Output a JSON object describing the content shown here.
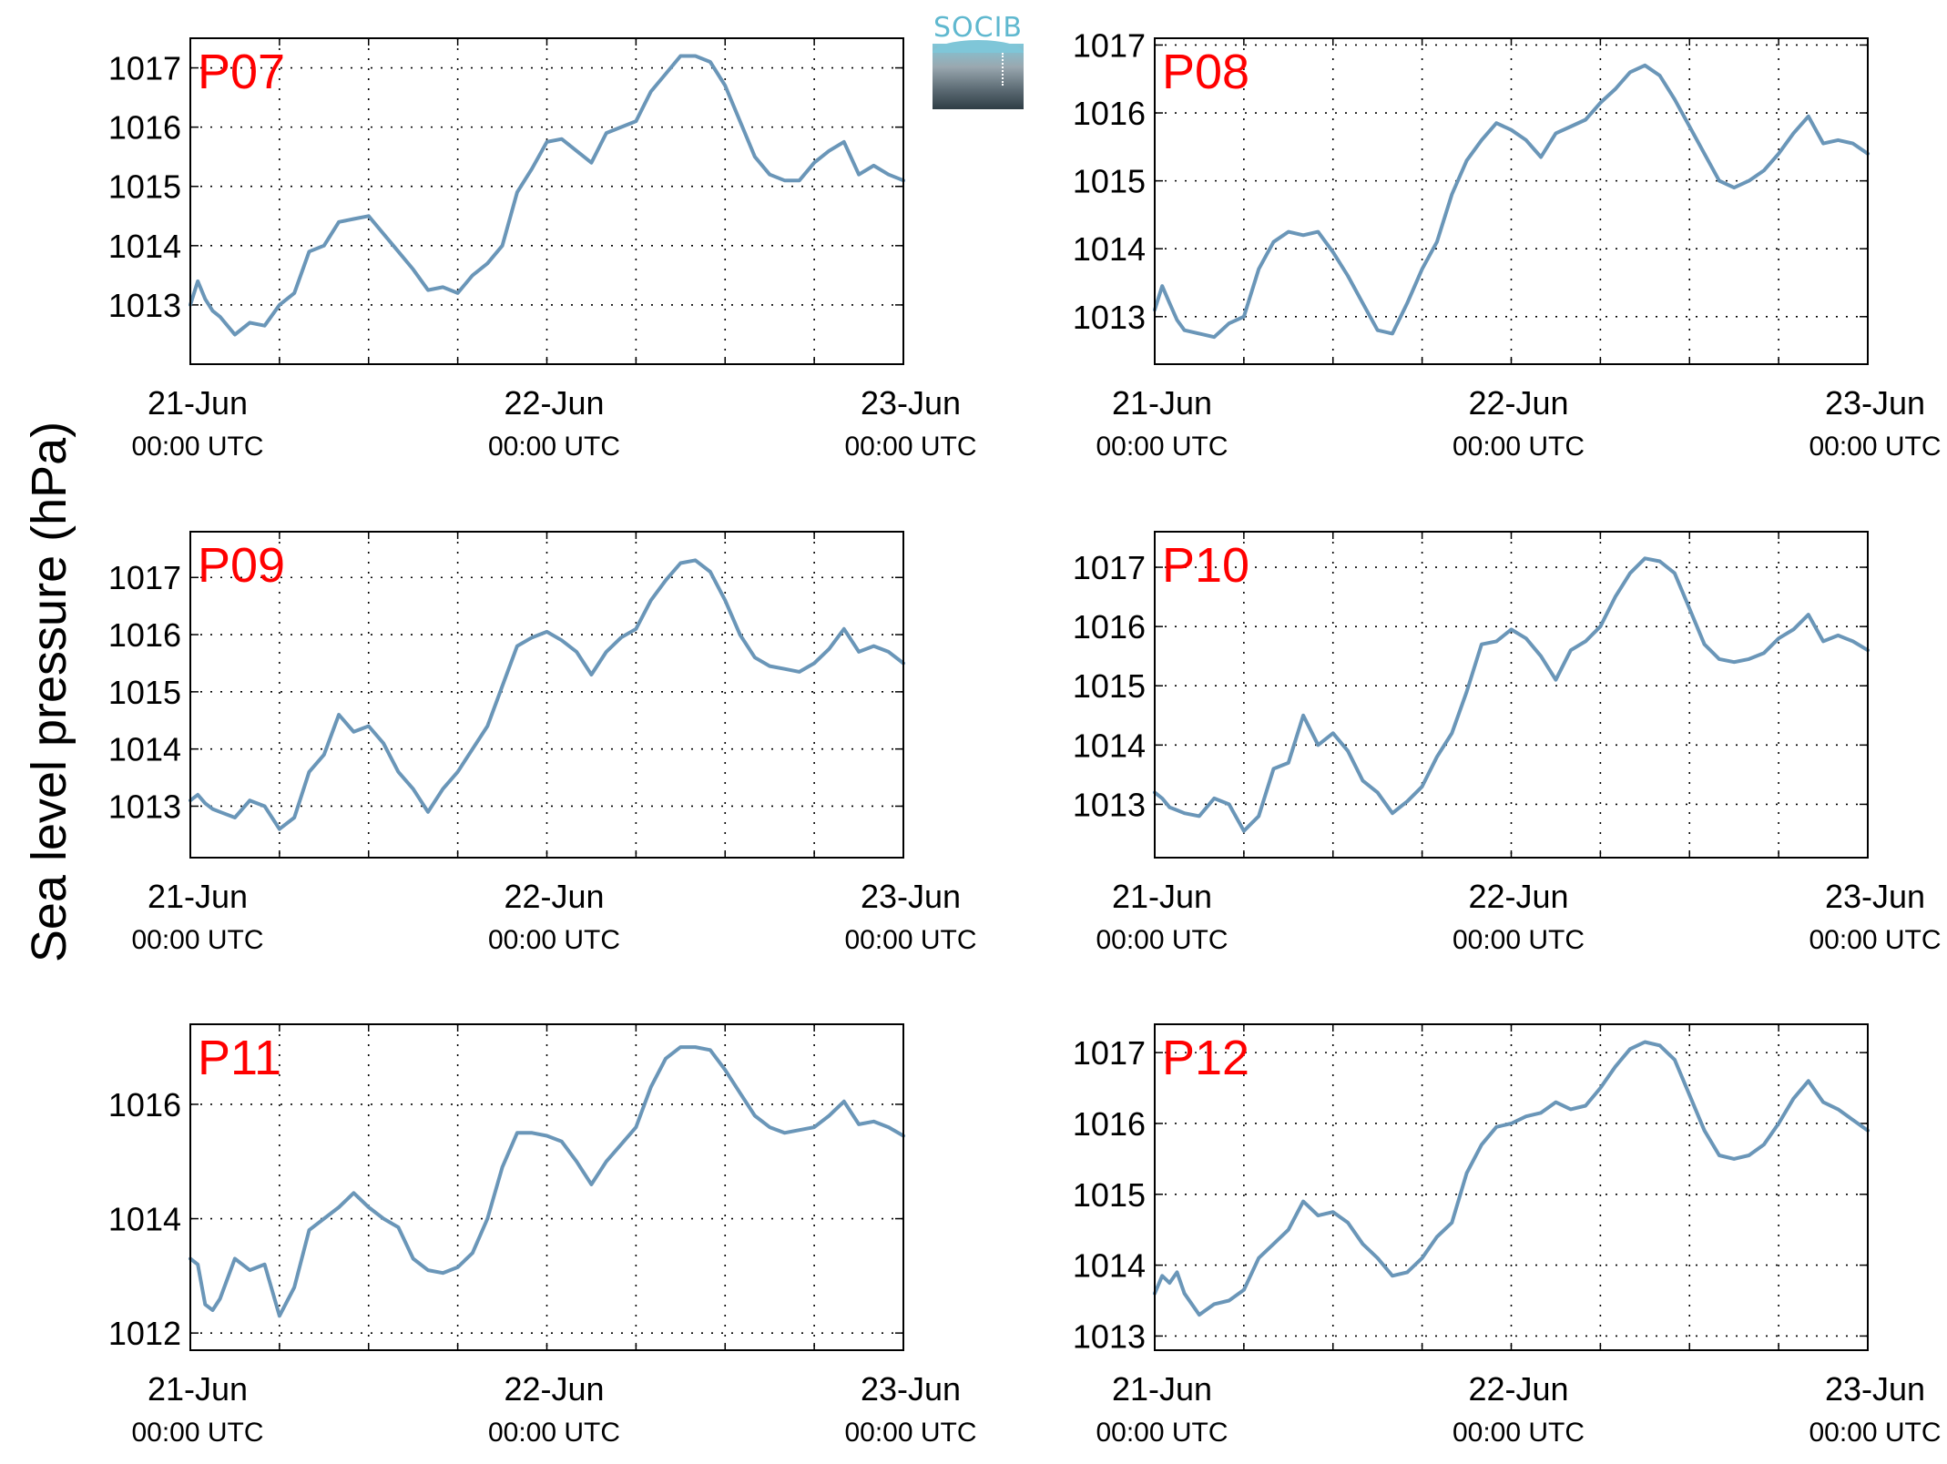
{
  "figure": {
    "ylabel": "Sea level pressure (hPa)",
    "logo_text": "SOCIB",
    "colors": {
      "line": "#6a96b8",
      "panel_label": "#ff0000",
      "axis": "#000000"
    }
  },
  "chart_data": [
    {
      "type": "line",
      "title": "P07",
      "x_ticks": [
        [
          "21-Jun",
          "00:00 UTC"
        ],
        [
          "22-Jun",
          "00:00 UTC"
        ],
        [
          "23-Jun",
          "00:00 UTC"
        ]
      ],
      "xlim_hours": [
        0,
        48
      ],
      "ylim": [
        1012.0,
        1017.5
      ],
      "y_ticks": [
        1013,
        1014,
        1015,
        1016,
        1017
      ],
      "grid": true,
      "x_hours": [
        0,
        0.5,
        1,
        1.5,
        2,
        3,
        4,
        5,
        6,
        7,
        8,
        9,
        10,
        11,
        12,
        13,
        14,
        15,
        16,
        17,
        18,
        19,
        20,
        21,
        22,
        23,
        24,
        25,
        26,
        27,
        28,
        29,
        30,
        31,
        32,
        33,
        34,
        35,
        36,
        37,
        38,
        39,
        40,
        41,
        42,
        43,
        44,
        45,
        46,
        47,
        48
      ],
      "values": [
        1013.0,
        1013.4,
        1013.1,
        1012.9,
        1012.8,
        1012.5,
        1012.7,
        1012.65,
        1013.0,
        1013.2,
        1013.9,
        1014.0,
        1014.4,
        1014.45,
        1014.5,
        1014.2,
        1013.9,
        1013.6,
        1013.25,
        1013.3,
        1013.2,
        1013.5,
        1013.7,
        1014.0,
        1014.9,
        1015.3,
        1015.75,
        1015.8,
        1015.6,
        1015.4,
        1015.9,
        1016.0,
        1016.1,
        1016.6,
        1016.9,
        1017.2,
        1017.2,
        1017.1,
        1016.7,
        1016.1,
        1015.5,
        1015.2,
        1015.1,
        1015.1,
        1015.4,
        1015.6,
        1015.75,
        1015.2,
        1015.35,
        1015.2,
        1015.1
      ]
    },
    {
      "type": "line",
      "title": "P08",
      "x_ticks": [
        [
          "21-Jun",
          "00:00 UTC"
        ],
        [
          "22-Jun",
          "00:00 UTC"
        ],
        [
          "23-Jun",
          "00:00 UTC"
        ]
      ],
      "xlim_hours": [
        0,
        48
      ],
      "ylim": [
        1012.3,
        1017.1
      ],
      "y_ticks": [
        1013,
        1014,
        1015,
        1016,
        1017
      ],
      "grid": true,
      "x_hours": [
        0,
        0.5,
        1,
        1.5,
        2,
        3,
        4,
        5,
        6,
        7,
        8,
        9,
        10,
        11,
        12,
        13,
        14,
        15,
        16,
        17,
        18,
        19,
        20,
        21,
        22,
        23,
        24,
        25,
        26,
        27,
        28,
        29,
        30,
        31,
        32,
        33,
        34,
        35,
        36,
        37,
        38,
        39,
        40,
        41,
        42,
        43,
        44,
        45,
        46,
        47,
        48
      ],
      "values": [
        1013.1,
        1013.45,
        1013.2,
        1012.95,
        1012.8,
        1012.75,
        1012.7,
        1012.9,
        1013.0,
        1013.7,
        1014.1,
        1014.25,
        1014.2,
        1014.25,
        1013.95,
        1013.6,
        1013.2,
        1012.8,
        1012.75,
        1013.2,
        1013.7,
        1014.1,
        1014.8,
        1015.3,
        1015.6,
        1015.85,
        1015.75,
        1015.6,
        1015.35,
        1015.7,
        1015.8,
        1015.9,
        1016.15,
        1016.35,
        1016.6,
        1016.7,
        1016.55,
        1016.2,
        1015.8,
        1015.4,
        1015.0,
        1014.9,
        1015.0,
        1015.15,
        1015.4,
        1015.7,
        1015.95,
        1015.55,
        1015.6,
        1015.55,
        1015.4
      ]
    },
    {
      "type": "line",
      "title": "P09",
      "x_ticks": [
        [
          "21-Jun",
          "00:00 UTC"
        ],
        [
          "22-Jun",
          "00:00 UTC"
        ],
        [
          "23-Jun",
          "00:00 UTC"
        ]
      ],
      "xlim_hours": [
        0,
        48
      ],
      "ylim": [
        1012.1,
        1017.8
      ],
      "y_ticks": [
        1013,
        1014,
        1015,
        1016,
        1017
      ],
      "grid": true,
      "x_hours": [
        0,
        0.5,
        1,
        1.5,
        2,
        3,
        4,
        5,
        6,
        7,
        8,
        9,
        10,
        11,
        12,
        13,
        14,
        15,
        16,
        17,
        18,
        19,
        20,
        21,
        22,
        23,
        24,
        25,
        26,
        27,
        28,
        29,
        30,
        31,
        32,
        33,
        34,
        35,
        36,
        37,
        38,
        39,
        40,
        41,
        42,
        43,
        44,
        45,
        46,
        47,
        48
      ],
      "values": [
        1013.1,
        1013.2,
        1013.05,
        1012.95,
        1012.9,
        1012.8,
        1013.1,
        1013.0,
        1012.6,
        1012.8,
        1013.6,
        1013.9,
        1014.6,
        1014.3,
        1014.4,
        1014.1,
        1013.6,
        1013.3,
        1012.9,
        1013.3,
        1013.6,
        1014.0,
        1014.4,
        1015.1,
        1015.8,
        1015.95,
        1016.05,
        1015.9,
        1015.7,
        1015.3,
        1015.7,
        1015.95,
        1016.1,
        1016.6,
        1016.95,
        1017.25,
        1017.3,
        1017.1,
        1016.6,
        1016.0,
        1015.6,
        1015.45,
        1015.4,
        1015.35,
        1015.5,
        1015.75,
        1016.1,
        1015.7,
        1015.8,
        1015.7,
        1015.5
      ]
    },
    {
      "type": "line",
      "title": "P10",
      "x_ticks": [
        [
          "21-Jun",
          "00:00 UTC"
        ],
        [
          "22-Jun",
          "00:00 UTC"
        ],
        [
          "23-Jun",
          "00:00 UTC"
        ]
      ],
      "xlim_hours": [
        0,
        48
      ],
      "ylim": [
        1012.1,
        1017.6
      ],
      "y_ticks": [
        1013,
        1014,
        1015,
        1016,
        1017
      ],
      "grid": true,
      "x_hours": [
        0,
        0.5,
        1,
        1.5,
        2,
        3,
        4,
        5,
        6,
        7,
        8,
        9,
        10,
        11,
        12,
        13,
        14,
        15,
        16,
        17,
        18,
        19,
        20,
        21,
        22,
        23,
        24,
        25,
        26,
        27,
        28,
        29,
        30,
        31,
        32,
        33,
        34,
        35,
        36,
        37,
        38,
        39,
        40,
        41,
        42,
        43,
        44,
        45,
        46,
        47,
        48
      ],
      "values": [
        1013.2,
        1013.1,
        1012.95,
        1012.9,
        1012.85,
        1012.8,
        1013.1,
        1013.0,
        1012.55,
        1012.8,
        1013.6,
        1013.7,
        1014.5,
        1014.0,
        1014.2,
        1013.9,
        1013.4,
        1013.2,
        1012.85,
        1013.05,
        1013.3,
        1013.8,
        1014.2,
        1014.9,
        1015.7,
        1015.75,
        1015.95,
        1015.8,
        1015.5,
        1015.1,
        1015.6,
        1015.75,
        1016.0,
        1016.5,
        1016.9,
        1017.15,
        1017.1,
        1016.9,
        1016.3,
        1015.7,
        1015.45,
        1015.4,
        1015.45,
        1015.55,
        1015.8,
        1015.95,
        1016.2,
        1015.75,
        1015.85,
        1015.75,
        1015.6
      ]
    },
    {
      "type": "line",
      "title": "P11",
      "x_ticks": [
        [
          "21-Jun",
          "00:00 UTC"
        ],
        [
          "22-Jun",
          "00:00 UTC"
        ],
        [
          "23-Jun",
          "00:00 UTC"
        ]
      ],
      "xlim_hours": [
        0,
        48
      ],
      "ylim": [
        1011.7,
        1017.4
      ],
      "y_ticks": [
        1012,
        1014,
        1016
      ],
      "grid": true,
      "x_hours": [
        0,
        0.5,
        1,
        1.5,
        2,
        3,
        4,
        5,
        6,
        7,
        8,
        9,
        10,
        11,
        12,
        13,
        14,
        15,
        16,
        17,
        18,
        19,
        20,
        21,
        22,
        23,
        24,
        25,
        26,
        27,
        28,
        29,
        30,
        31,
        32,
        33,
        34,
        35,
        36,
        37,
        38,
        39,
        40,
        41,
        42,
        43,
        44,
        45,
        46,
        47,
        48
      ],
      "values": [
        1013.3,
        1013.2,
        1012.5,
        1012.4,
        1012.6,
        1013.3,
        1013.1,
        1013.2,
        1012.3,
        1012.8,
        1013.8,
        1014.0,
        1014.2,
        1014.45,
        1014.2,
        1014.0,
        1013.85,
        1013.3,
        1013.1,
        1013.05,
        1013.15,
        1013.4,
        1014.0,
        1014.9,
        1015.5,
        1015.5,
        1015.45,
        1015.35,
        1015.0,
        1014.6,
        1015.0,
        1015.3,
        1015.6,
        1016.3,
        1016.8,
        1017.0,
        1017.0,
        1016.95,
        1016.6,
        1016.2,
        1015.8,
        1015.6,
        1015.5,
        1015.55,
        1015.6,
        1015.8,
        1016.05,
        1015.65,
        1015.7,
        1015.6,
        1015.45
      ]
    },
    {
      "type": "line",
      "title": "P12",
      "x_ticks": [
        [
          "21-Jun",
          "00:00 UTC"
        ],
        [
          "22-Jun",
          "00:00 UTC"
        ],
        [
          "23-Jun",
          "00:00 UTC"
        ]
      ],
      "xlim_hours": [
        0,
        48
      ],
      "ylim": [
        1012.8,
        1017.4
      ],
      "y_ticks": [
        1013,
        1014,
        1015,
        1016,
        1017
      ],
      "grid": true,
      "x_hours": [
        0,
        0.5,
        1,
        1.5,
        2,
        3,
        4,
        5,
        6,
        7,
        8,
        9,
        10,
        11,
        12,
        13,
        14,
        15,
        16,
        17,
        18,
        19,
        20,
        21,
        22,
        23,
        24,
        25,
        26,
        27,
        28,
        29,
        30,
        31,
        32,
        33,
        34,
        35,
        36,
        37,
        38,
        39,
        40,
        41,
        42,
        43,
        44,
        45,
        46,
        47,
        48
      ],
      "values": [
        1013.6,
        1013.85,
        1013.75,
        1013.9,
        1013.6,
        1013.3,
        1013.45,
        1013.5,
        1013.65,
        1014.1,
        1014.3,
        1014.5,
        1014.9,
        1014.7,
        1014.75,
        1014.6,
        1014.3,
        1014.1,
        1013.85,
        1013.9,
        1014.1,
        1014.4,
        1014.6,
        1015.3,
        1015.7,
        1015.95,
        1016.0,
        1016.1,
        1016.15,
        1016.3,
        1016.2,
        1016.25,
        1016.5,
        1016.8,
        1017.05,
        1017.15,
        1017.1,
        1016.9,
        1016.4,
        1015.9,
        1015.55,
        1015.5,
        1015.55,
        1015.7,
        1016.0,
        1016.35,
        1016.6,
        1016.3,
        1016.2,
        1016.05,
        1015.9
      ]
    }
  ]
}
